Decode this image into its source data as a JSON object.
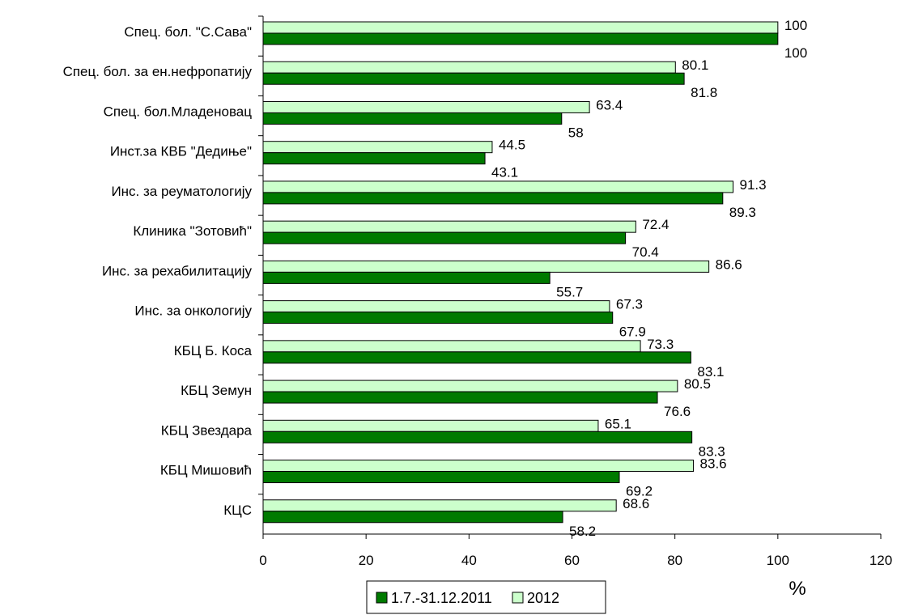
{
  "chart_data": {
    "type": "bar",
    "orientation": "horizontal",
    "categories": [
      "Спец. бол. \"С.Сава\"",
      "Спец. бол. за ен.нефропатију",
      "Спец. бол.Младеновац",
      "Инст.за КВБ \"Дедиње\"",
      "Инс. за реуматологију",
      "Клиника \"Зотовић\"",
      "Инс. за рехабилитацију",
      "Инс. за онкологију",
      "КБЦ Б. Коса",
      "КБЦ Земун",
      "КБЦ Звездара",
      "КБЦ Мишовић",
      "КЦС"
    ],
    "series": [
      {
        "name": "2012",
        "color": "#ccffcc",
        "values": [
          100,
          80.1,
          63.4,
          44.5,
          91.3,
          72.4,
          86.6,
          67.3,
          73.3,
          80.5,
          65.1,
          83.6,
          68.6
        ]
      },
      {
        "name": "1.7.-31.12.2011",
        "color": "#007a00",
        "values": [
          100,
          81.8,
          58,
          43.1,
          89.3,
          70.4,
          55.7,
          67.9,
          83.1,
          76.6,
          83.3,
          69.2,
          58.2
        ]
      }
    ],
    "legend_order": [
      "1.7.-31.12.2011",
      "2012"
    ],
    "xlim": [
      0,
      120
    ],
    "xticks": [
      0,
      20,
      40,
      60,
      80,
      100,
      120
    ],
    "xlabel": "%",
    "grid": false,
    "legend_position": "bottom"
  }
}
